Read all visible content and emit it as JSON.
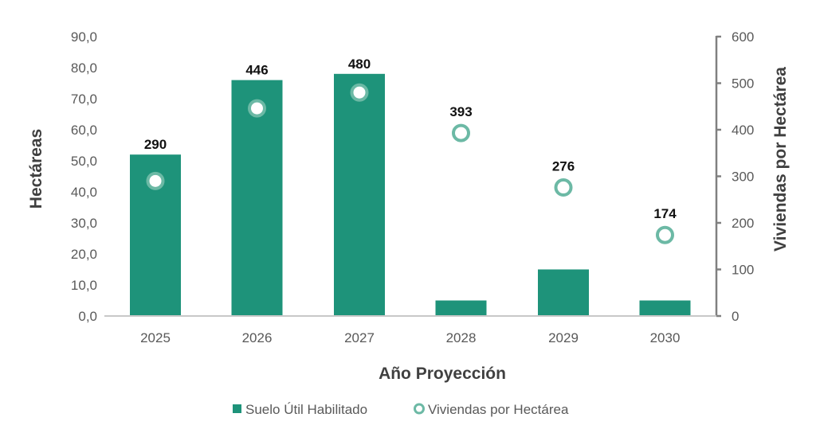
{
  "colors": {
    "bar": "#1e937a",
    "marker_ring": "#6cb9a5",
    "marker_fill": "#ffffff",
    "axis": "#808080",
    "baseline": "#c8c8c8"
  },
  "chart_data": {
    "type": "bar",
    "title": "",
    "xlabel": "Año Proyección",
    "ylabel": "Hectáreas",
    "y2label": "Viviendas por Hectárea",
    "categories": [
      "2025",
      "2026",
      "2027",
      "2028",
      "2029",
      "2030"
    ],
    "series": [
      {
        "name": "Suelo Útil Habilitado",
        "type": "bar",
        "axis": "left",
        "values": [
          52,
          76,
          78,
          5,
          15,
          5
        ]
      },
      {
        "name": "Viviendas por Hectárea",
        "type": "scatter",
        "axis": "right",
        "values": [
          290,
          446,
          480,
          393,
          276,
          174
        ],
        "data_labels": [
          "290",
          "446",
          "480",
          "393",
          "276",
          "174"
        ]
      }
    ],
    "ylim": [
      0,
      90
    ],
    "y2lim": [
      0,
      600
    ],
    "yticks": [
      "0,0",
      "10,0",
      "20,0",
      "30,0",
      "40,0",
      "50,0",
      "60,0",
      "70,0",
      "80,0",
      "90,0"
    ],
    "y2ticks": [
      "0",
      "100",
      "200",
      "300",
      "400",
      "500",
      "600"
    ],
    "grid": false,
    "legend_position": "bottom"
  },
  "legend": [
    {
      "label": "Suelo Útil Habilitado",
      "icon": "filled-square"
    },
    {
      "label": "Viviendas por Hectárea",
      "icon": "ring-circle"
    }
  ]
}
